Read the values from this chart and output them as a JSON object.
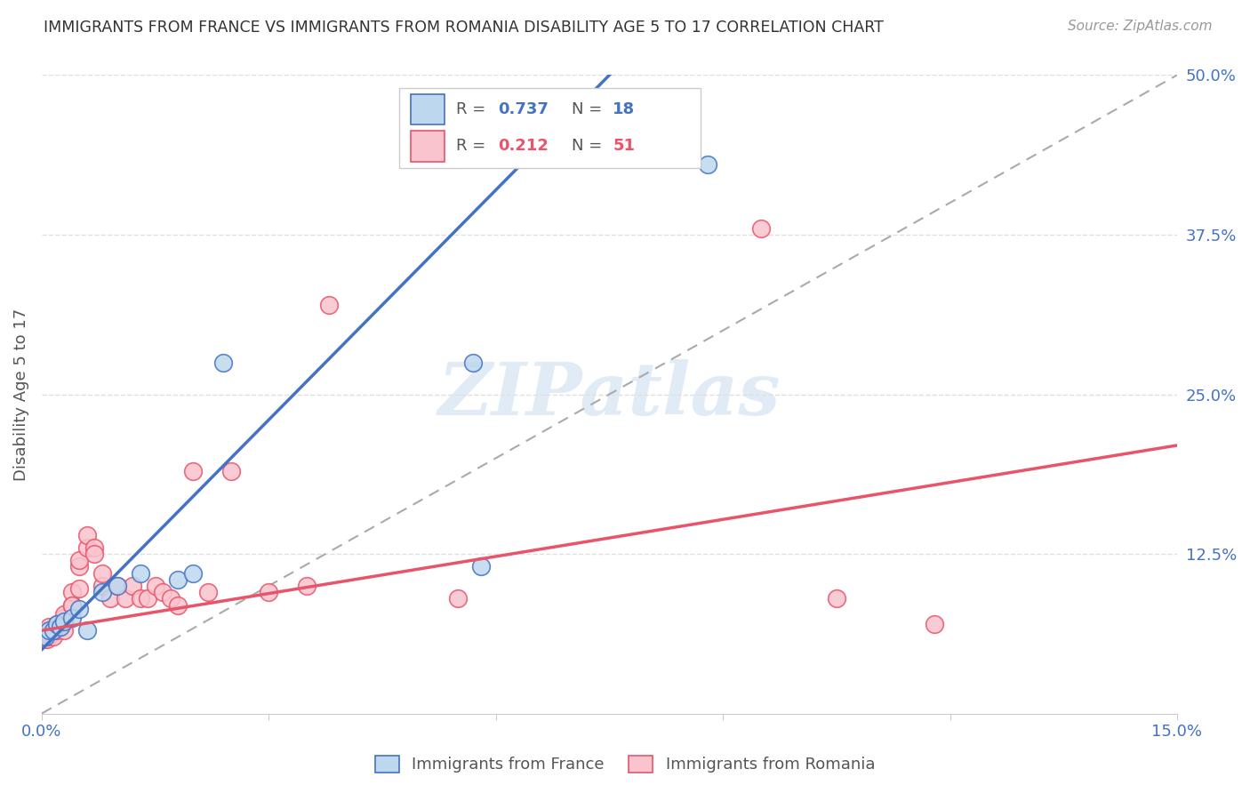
{
  "title": "IMMIGRANTS FROM FRANCE VS IMMIGRANTS FROM ROMANIA DISABILITY AGE 5 TO 17 CORRELATION CHART",
  "source": "Source: ZipAtlas.com",
  "ylabel": "Disability Age 5 to 17",
  "xlim": [
    0.0,
    0.15
  ],
  "ylim": [
    0.0,
    0.5
  ],
  "xtick_positions": [
    0.0,
    0.03,
    0.06,
    0.09,
    0.12,
    0.15
  ],
  "xticklabels": [
    "0.0%",
    "",
    "",
    "",
    "",
    "15.0%"
  ],
  "yticks_right": [
    0.0,
    0.125,
    0.25,
    0.375,
    0.5
  ],
  "yticklabels_right": [
    "",
    "12.5%",
    "25.0%",
    "37.5%",
    "50.0%"
  ],
  "france_R": 0.737,
  "france_N": 18,
  "romania_R": 0.212,
  "romania_N": 51,
  "france_fill_color": "#BDD7EE",
  "romania_fill_color": "#F9C4CE",
  "france_edge_color": "#4472C4",
  "romania_edge_color": "#E8546A",
  "france_line_color": "#4472C4",
  "romania_line_color": "#E8546A",
  "grid_color": "#E0E0E0",
  "diag_color": "#AAAAAA",
  "watermark": "ZIPatlas",
  "france_scatter_x": [
    0.0005,
    0.001,
    0.0015,
    0.002,
    0.0025,
    0.003,
    0.004,
    0.005,
    0.006,
    0.008,
    0.01,
    0.013,
    0.018,
    0.02,
    0.024,
    0.057,
    0.058,
    0.088
  ],
  "france_scatter_y": [
    0.06,
    0.065,
    0.065,
    0.07,
    0.068,
    0.072,
    0.075,
    0.082,
    0.065,
    0.095,
    0.1,
    0.11,
    0.105,
    0.11,
    0.275,
    0.275,
    0.115,
    0.43
  ],
  "romania_scatter_x": [
    0.0003,
    0.0004,
    0.0005,
    0.0006,
    0.0007,
    0.0008,
    0.001,
    0.001,
    0.001,
    0.001,
    0.0015,
    0.0015,
    0.002,
    0.002,
    0.002,
    0.003,
    0.003,
    0.003,
    0.003,
    0.004,
    0.004,
    0.004,
    0.005,
    0.005,
    0.005,
    0.006,
    0.006,
    0.007,
    0.007,
    0.008,
    0.008,
    0.009,
    0.01,
    0.011,
    0.012,
    0.013,
    0.014,
    0.015,
    0.016,
    0.017,
    0.018,
    0.02,
    0.022,
    0.025,
    0.03,
    0.035,
    0.038,
    0.055,
    0.095,
    0.105,
    0.118
  ],
  "romania_scatter_y": [
    0.058,
    0.06,
    0.06,
    0.062,
    0.058,
    0.06,
    0.062,
    0.065,
    0.068,
    0.062,
    0.06,
    0.065,
    0.065,
    0.068,
    0.07,
    0.072,
    0.075,
    0.078,
    0.065,
    0.085,
    0.095,
    0.085,
    0.115,
    0.12,
    0.098,
    0.13,
    0.14,
    0.13,
    0.125,
    0.1,
    0.11,
    0.09,
    0.1,
    0.09,
    0.1,
    0.09,
    0.09,
    0.1,
    0.095,
    0.09,
    0.085,
    0.19,
    0.095,
    0.19,
    0.095,
    0.1,
    0.32,
    0.09,
    0.38,
    0.09,
    0.07
  ],
  "france_line_x0": 0.0,
  "france_line_y0": 0.05,
  "france_line_x1": 0.075,
  "france_line_y1": 0.5,
  "romania_line_x0": 0.0,
  "romania_line_y0": 0.065,
  "romania_line_x1": 0.15,
  "romania_line_y1": 0.21
}
